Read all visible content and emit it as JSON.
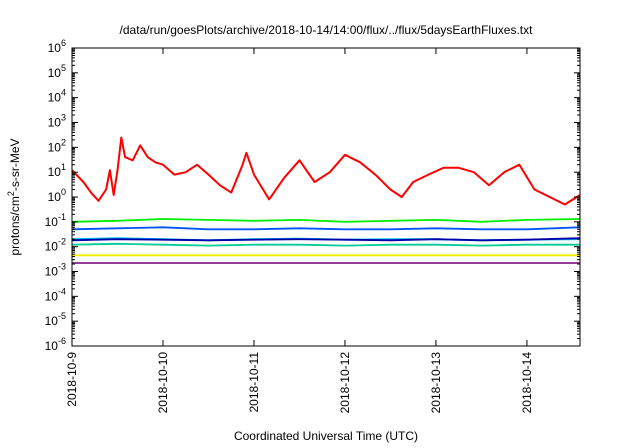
{
  "chart_data": {
    "type": "line",
    "title": "/data/run/goesPlots/archive/2018-10-14/14:00/flux/../flux/5daysEarthFluxes.txt",
    "xlabel": "Coordinated Universal Time (UTC)",
    "ylabel": "protons/cm²-s-sr-MeV",
    "ylabel_parts": {
      "pre": "protons/cm",
      "sup": "2",
      "post": "-s-sr-MeV"
    },
    "y_scale": "log",
    "ylim": [
      1e-06,
      1000000.0
    ],
    "y_ticks": [
      {
        "base": "10",
        "exp": "-6"
      },
      {
        "base": "10",
        "exp": "-5"
      },
      {
        "base": "10",
        "exp": "-4"
      },
      {
        "base": "10",
        "exp": "-3"
      },
      {
        "base": "10",
        "exp": "-2"
      },
      {
        "base": "10",
        "exp": "-1"
      },
      {
        "base": "10",
        "exp": "0"
      },
      {
        "base": "10",
        "exp": "1"
      },
      {
        "base": "10",
        "exp": "2"
      },
      {
        "base": "10",
        "exp": "3"
      },
      {
        "base": "10",
        "exp": "4"
      },
      {
        "base": "10",
        "exp": "5"
      },
      {
        "base": "10",
        "exp": "6"
      }
    ],
    "xlim": [
      "2018-10-09",
      "2018-10-14T14:00"
    ],
    "x_ticks": [
      "2018-10-9",
      "2018-10-10",
      "2018-10-11",
      "2018-10-12",
      "2018-10-13",
      "2018-10-14"
    ],
    "grid": false,
    "series": [
      {
        "color": "#ff0000",
        "x": [
          "2018-10-09T00:00",
          "2018-10-09T03:00",
          "2018-10-09T05:00",
          "2018-10-09T07:00",
          "2018-10-09T09:00",
          "2018-10-09T10:00",
          "2018-10-09T11:00",
          "2018-10-09T12:00",
          "2018-10-09T13:00",
          "2018-10-09T14:00",
          "2018-10-09T16:00",
          "2018-10-09T18:00",
          "2018-10-09T20:00",
          "2018-10-09T22:00",
          "2018-10-10T00:00",
          "2018-10-10T03:00",
          "2018-10-10T06:00",
          "2018-10-10T09:00",
          "2018-10-10T12:00",
          "2018-10-10T15:00",
          "2018-10-10T18:00",
          "2018-10-10T21:00",
          "2018-10-10T22:00",
          "2018-10-11T00:00",
          "2018-10-11T04:00",
          "2018-10-11T08:00",
          "2018-10-11T12:00",
          "2018-10-11T16:00",
          "2018-10-11T20:00",
          "2018-10-12T00:00",
          "2018-10-12T04:00",
          "2018-10-12T08:00",
          "2018-10-12T12:00",
          "2018-10-12T15:00",
          "2018-10-12T18:00",
          "2018-10-12T22:00",
          "2018-10-13T02:00",
          "2018-10-13T06:00",
          "2018-10-13T10:00",
          "2018-10-13T14:00",
          "2018-10-13T18:00",
          "2018-10-13T22:00",
          "2018-10-14T02:00",
          "2018-10-14T06:00",
          "2018-10-14T10:00",
          "2018-10-14T14:00"
        ],
        "values": [
          12,
          4,
          1.5,
          0.7,
          2,
          12,
          1.2,
          12,
          250,
          40,
          30,
          120,
          40,
          25,
          20,
          8,
          10,
          20,
          8,
          3,
          1.5,
          20,
          60,
          8,
          0.8,
          6,
          30,
          4,
          10,
          50,
          25,
          8,
          2,
          1,
          4,
          8,
          15,
          15,
          10,
          3,
          10,
          20,
          2,
          1,
          0.5,
          1.2
        ]
      },
      {
        "color": "#00ee00",
        "x": [
          "2018-10-09T00:00",
          "2018-10-09T12:00",
          "2018-10-10T00:00",
          "2018-10-10T12:00",
          "2018-10-11T00:00",
          "2018-10-11T12:00",
          "2018-10-12T00:00",
          "2018-10-12T12:00",
          "2018-10-13T00:00",
          "2018-10-13T12:00",
          "2018-10-14T00:00",
          "2018-10-14T14:00"
        ],
        "values": [
          0.1,
          0.11,
          0.13,
          0.12,
          0.11,
          0.12,
          0.1,
          0.11,
          0.12,
          0.1,
          0.12,
          0.13
        ]
      },
      {
        "color": "#0055ff",
        "x": [
          "2018-10-09T00:00",
          "2018-10-09T12:00",
          "2018-10-10T00:00",
          "2018-10-10T12:00",
          "2018-10-11T00:00",
          "2018-10-11T12:00",
          "2018-10-12T00:00",
          "2018-10-12T12:00",
          "2018-10-13T00:00",
          "2018-10-13T12:00",
          "2018-10-14T00:00",
          "2018-10-14T14:00"
        ],
        "values": [
          0.05,
          0.055,
          0.06,
          0.05,
          0.05,
          0.055,
          0.05,
          0.05,
          0.055,
          0.05,
          0.05,
          0.06
        ]
      },
      {
        "color": "#00bbee",
        "x": [
          "2018-10-09T00:00",
          "2018-10-09T12:00",
          "2018-10-10T00:00",
          "2018-10-10T12:00",
          "2018-10-11T00:00",
          "2018-10-11T12:00",
          "2018-10-12T00:00",
          "2018-10-12T12:00",
          "2018-10-13T00:00",
          "2018-10-13T12:00",
          "2018-10-14T00:00",
          "2018-10-14T14:00"
        ],
        "values": [
          0.02,
          0.022,
          0.02,
          0.018,
          0.02,
          0.021,
          0.019,
          0.02,
          0.02,
          0.018,
          0.019,
          0.02
        ]
      },
      {
        "color": "#0000aa",
        "x": [
          "2018-10-09T00:00",
          "2018-10-09T12:00",
          "2018-10-10T00:00",
          "2018-10-10T12:00",
          "2018-10-11T00:00",
          "2018-10-11T12:00",
          "2018-10-12T00:00",
          "2018-10-12T12:00",
          "2018-10-13T00:00",
          "2018-10-13T12:00",
          "2018-10-14T00:00",
          "2018-10-14T14:00"
        ],
        "values": [
          0.018,
          0.02,
          0.019,
          0.018,
          0.019,
          0.02,
          0.019,
          0.018,
          0.02,
          0.018,
          0.019,
          0.022
        ]
      },
      {
        "color": "#00cc99",
        "x": [
          "2018-10-09T00:00",
          "2018-10-09T12:00",
          "2018-10-10T00:00",
          "2018-10-10T12:00",
          "2018-10-11T00:00",
          "2018-10-11T12:00",
          "2018-10-12T00:00",
          "2018-10-12T12:00",
          "2018-10-13T00:00",
          "2018-10-13T12:00",
          "2018-10-14T00:00",
          "2018-10-14T14:00"
        ],
        "values": [
          0.012,
          0.013,
          0.012,
          0.011,
          0.012,
          0.012,
          0.011,
          0.012,
          0.012,
          0.011,
          0.012,
          0.012
        ]
      },
      {
        "color": "#eeee00",
        "x": [
          "2018-10-09T00:00",
          "2018-10-10T00:00",
          "2018-10-11T00:00",
          "2018-10-12T00:00",
          "2018-10-13T00:00",
          "2018-10-14T00:00",
          "2018-10-14T14:00"
        ],
        "values": [
          0.0045,
          0.0045,
          0.0045,
          0.0045,
          0.0045,
          0.0045,
          0.0045
        ]
      },
      {
        "color": "#882288",
        "x": [
          "2018-10-09T00:00",
          "2018-10-10T00:00",
          "2018-10-11T00:00",
          "2018-10-12T00:00",
          "2018-10-13T00:00",
          "2018-10-14T00:00",
          "2018-10-14T14:00"
        ],
        "values": [
          0.0022,
          0.0022,
          0.0022,
          0.0022,
          0.0022,
          0.0022,
          0.0022
        ]
      }
    ]
  }
}
